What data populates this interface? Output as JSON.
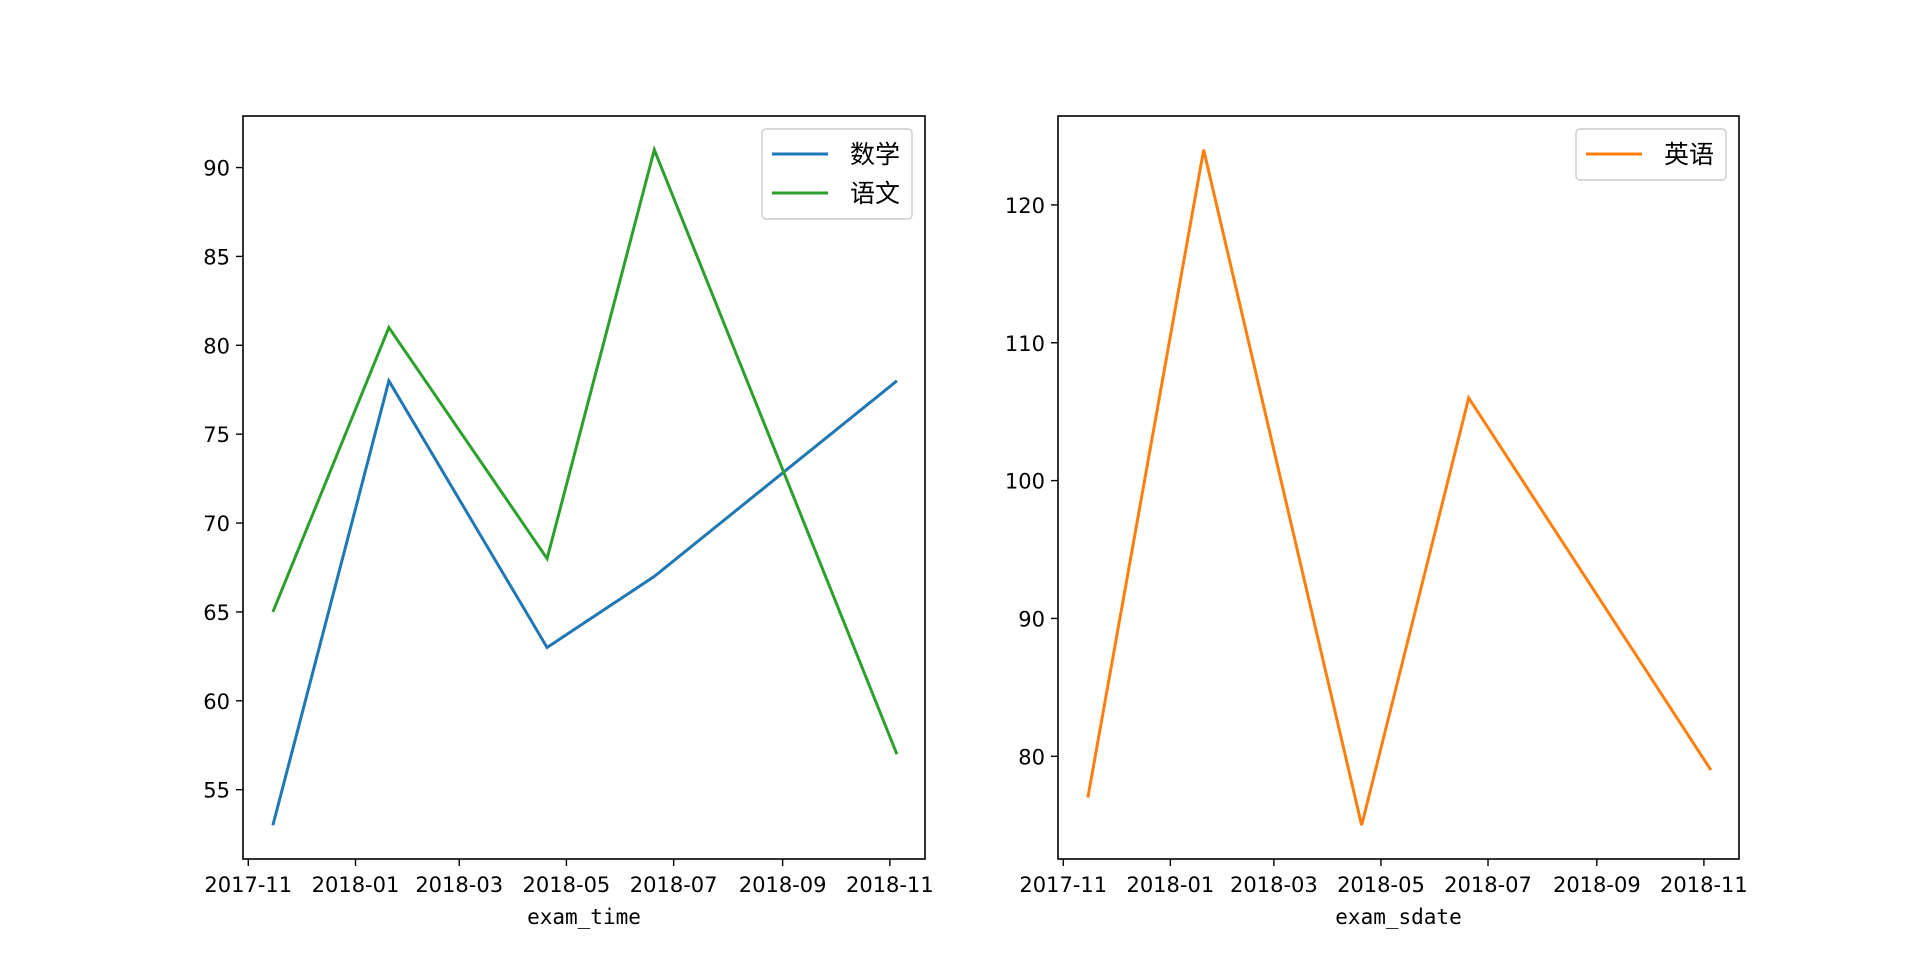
{
  "chart_data": [
    {
      "type": "line",
      "title": "",
      "xlabel": "exam_time",
      "ylabel": "",
      "x": [
        "2017-11-15",
        "2018-01-20",
        "2018-04-20",
        "2018-06-20",
        "2018-11-05"
      ],
      "xticks": [
        "2017-11-01",
        "2018-01-01",
        "2018-03-01",
        "2018-05-01",
        "2018-07-01",
        "2018-09-01",
        "2018-11-01"
      ],
      "xtick_labels": [
        "2017-11",
        "2018-01",
        "2018-03",
        "2018-05",
        "2018-07",
        "2018-09",
        "2018-11"
      ],
      "xlim": [
        "2017-10-29",
        "2018-11-21"
      ],
      "yticks": [
        55,
        60,
        65,
        70,
        75,
        80,
        85,
        90
      ],
      "ylim": [
        51.1,
        92.9
      ],
      "series": [
        {
          "name": "数学",
          "color": "#1f77b4",
          "values": [
            53,
            78,
            63,
            67,
            78
          ]
        },
        {
          "name": "语文",
          "color": "#2ca02c",
          "values": [
            65,
            81,
            68,
            91,
            57
          ]
        }
      ],
      "legend": "top-right",
      "grid": false
    },
    {
      "type": "line",
      "title": "",
      "xlabel": "exam_sdate",
      "ylabel": "",
      "x": [
        "2017-11-15",
        "2018-01-20",
        "2018-04-20",
        "2018-06-20",
        "2018-11-05"
      ],
      "xticks": [
        "2017-11-01",
        "2018-01-01",
        "2018-03-01",
        "2018-05-01",
        "2018-07-01",
        "2018-09-01",
        "2018-11-01"
      ],
      "xtick_labels": [
        "2017-11",
        "2018-01",
        "2018-03",
        "2018-05",
        "2018-07",
        "2018-09",
        "2018-11"
      ],
      "xlim": [
        "2017-10-29",
        "2018-11-21"
      ],
      "yticks": [
        80,
        90,
        100,
        110,
        120
      ],
      "ylim": [
        72.55,
        126.45
      ],
      "series": [
        {
          "name": "英语",
          "color": "#ff7f0e",
          "values": [
            77,
            124,
            75,
            106,
            79
          ]
        }
      ],
      "legend": "top-right",
      "grid": false
    }
  ]
}
